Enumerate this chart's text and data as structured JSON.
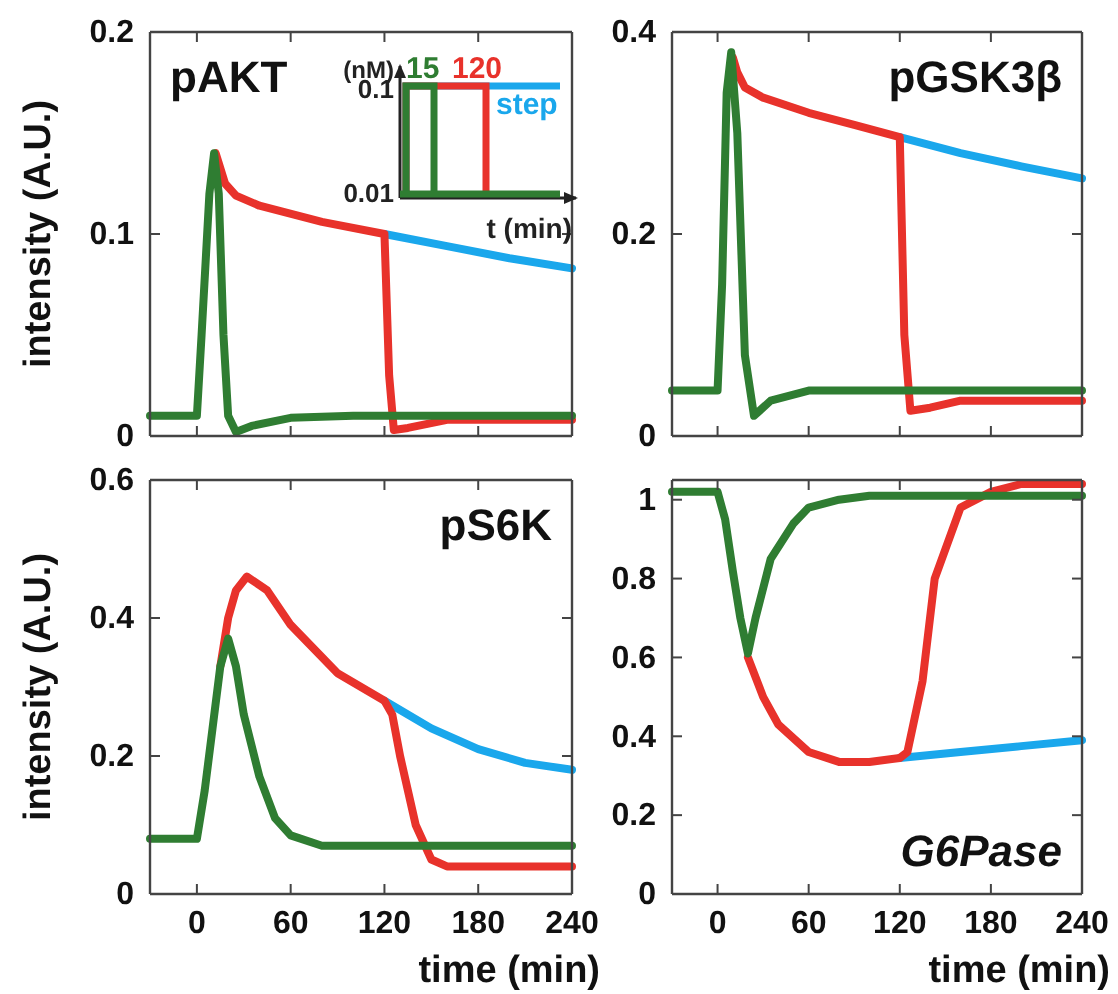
{
  "chart_data": [
    {
      "type": "line",
      "title": "pAKT",
      "ylabel": "intensity (A.U.)",
      "xlim": [
        -30,
        240
      ],
      "xticks": [
        0,
        60,
        120,
        180,
        240
      ],
      "ylim": [
        0,
        0.2
      ],
      "yticks": [
        0,
        0.1,
        0.2
      ],
      "tick_labels": "y",
      "legend": "top right",
      "annotations": [
        "(nM)",
        "0.1",
        "0.01",
        "t (min)"
      ],
      "series": [
        {
          "name": "step",
          "color": "#1aa7ec",
          "x": [
            120,
            160,
            200,
            240
          ],
          "values": [
            0.1,
            0.094,
            0.088,
            0.083
          ]
        },
        {
          "name": "120",
          "color": "#e8322b",
          "x": [
            12,
            14,
            18,
            25,
            40,
            80,
            120,
            123,
            126,
            135,
            160,
            240
          ],
          "values": [
            0.14,
            0.135,
            0.125,
            0.119,
            0.114,
            0.106,
            0.1,
            0.03,
            0.003,
            0.004,
            0.008,
            0.008
          ]
        },
        {
          "name": "15",
          "color": "#2f7d32",
          "x": [
            -30,
            0,
            3,
            8,
            11,
            14,
            17,
            20,
            25,
            35,
            60,
            100,
            240
          ],
          "values": [
            0.01,
            0.01,
            0.05,
            0.12,
            0.14,
            0.12,
            0.05,
            0.01,
            0.002,
            0.005,
            0.009,
            0.01,
            0.01
          ]
        }
      ]
    },
    {
      "type": "line",
      "title": "pGSK3β",
      "xlim": [
        -30,
        240
      ],
      "xticks": [
        0,
        60,
        120,
        180,
        240
      ],
      "ylim": [
        0,
        0.4
      ],
      "yticks": [
        0,
        0.2,
        0.4
      ],
      "tick_labels": "y",
      "series": [
        {
          "color": "#1aa7ec",
          "x": [
            120,
            160,
            200,
            240
          ],
          "values": [
            0.296,
            0.28,
            0.267,
            0.255
          ]
        },
        {
          "color": "#e8322b",
          "x": [
            10,
            13,
            18,
            30,
            60,
            90,
            120,
            123,
            127,
            140,
            160,
            240
          ],
          "values": [
            0.375,
            0.36,
            0.345,
            0.335,
            0.32,
            0.308,
            0.296,
            0.1,
            0.025,
            0.028,
            0.035,
            0.035
          ]
        },
        {
          "color": "#2f7d32",
          "x": [
            -30,
            0,
            3,
            6,
            9,
            13,
            18,
            24,
            35,
            60,
            240
          ],
          "values": [
            0.045,
            0.045,
            0.15,
            0.34,
            0.38,
            0.3,
            0.08,
            0.02,
            0.035,
            0.045,
            0.045
          ]
        }
      ]
    },
    {
      "type": "line",
      "title": "pS6K",
      "xlabel": "time (min)",
      "ylabel": "intensity (A.U.)",
      "xlim": [
        -30,
        240
      ],
      "xticks": [
        0,
        60,
        120,
        180,
        240
      ],
      "ylim": [
        0,
        0.6
      ],
      "yticks": [
        0,
        0.2,
        0.4,
        0.6
      ],
      "series": [
        {
          "color": "#1aa7ec",
          "x": [
            120,
            150,
            180,
            210,
            240
          ],
          "values": [
            0.28,
            0.24,
            0.21,
            0.19,
            0.18
          ]
        },
        {
          "color": "#e8322b",
          "x": [
            15,
            20,
            25,
            32,
            45,
            60,
            90,
            120,
            125,
            130,
            140,
            150,
            160,
            240
          ],
          "values": [
            0.33,
            0.4,
            0.44,
            0.46,
            0.44,
            0.39,
            0.32,
            0.28,
            0.26,
            0.2,
            0.1,
            0.05,
            0.04,
            0.04
          ]
        },
        {
          "color": "#2f7d32",
          "x": [
            -30,
            0,
            5,
            10,
            15,
            20,
            25,
            30,
            40,
            50,
            60,
            80,
            240
          ],
          "values": [
            0.08,
            0.08,
            0.15,
            0.24,
            0.33,
            0.37,
            0.33,
            0.26,
            0.17,
            0.11,
            0.085,
            0.07,
            0.07
          ]
        }
      ]
    },
    {
      "type": "line",
      "title": "G6Pase",
      "xlabel": "time (min)",
      "xlim": [
        -30,
        240
      ],
      "xticks": [
        0,
        60,
        120,
        180,
        240
      ],
      "ylim": [
        0,
        1.05
      ],
      "yticks": [
        0,
        0.2,
        0.4,
        0.6,
        0.8,
        1
      ],
      "series": [
        {
          "color": "#1aa7ec",
          "x": [
            120,
            160,
            200,
            240
          ],
          "values": [
            0.345,
            0.36,
            0.375,
            0.39
          ]
        },
        {
          "color": "#e8322b",
          "x": [
            20,
            30,
            40,
            60,
            80,
            100,
            120,
            125,
            135,
            143,
            160,
            180,
            200,
            240
          ],
          "values": [
            0.6,
            0.5,
            0.43,
            0.36,
            0.335,
            0.335,
            0.345,
            0.36,
            0.54,
            0.8,
            0.98,
            1.02,
            1.04,
            1.04
          ]
        },
        {
          "color": "#2f7d32",
          "x": [
            -30,
            0,
            5,
            10,
            15,
            20,
            25,
            35,
            50,
            60,
            80,
            100,
            240
          ],
          "values": [
            1.02,
            1.02,
            0.95,
            0.82,
            0.7,
            0.61,
            0.7,
            0.85,
            0.94,
            0.98,
            1.0,
            1.01,
            1.01
          ]
        }
      ]
    }
  ]
}
